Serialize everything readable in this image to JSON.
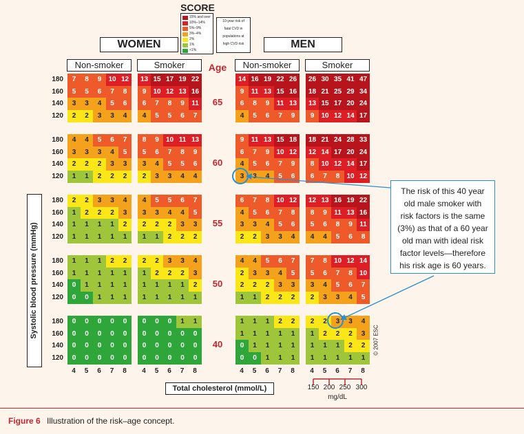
{
  "score": {
    "title": "SCORE",
    "legend": [
      "15% and over",
      "10%–14%",
      "5%–9%",
      "3%–4%",
      "2%",
      "1%",
      "<1%"
    ],
    "colors": [
      "#b8141b",
      "#dd1e24",
      "#ee5a2a",
      "#f4a21b",
      "#fbe718",
      "#9fc63b",
      "#2fa63a"
    ],
    "note_lines": [
      "10-year risk of",
      "fatal CVD in",
      "populations at",
      "high CVD risk"
    ]
  },
  "headings": {
    "women": "WOMEN",
    "men": "MEN",
    "age": "Age",
    "non_smoker": "Non-smoker",
    "smoker": "Smoker",
    "y_axis": "Systolic blood pressure (mmHg)",
    "x_axis": "Total cholesterol (mmol/L)"
  },
  "callout": {
    "lines": [
      "The risk of this 40 year",
      "old male smoker with",
      "risk factors is the same",
      "(3%) as that of a 60 year",
      "old man with ideal risk",
      "factor levels—therefore",
      "his risk age is 60 years."
    ]
  },
  "mgdl": {
    "ticks": [
      "150",
      "200",
      "250",
      "300"
    ],
    "unit": "mg/dL"
  },
  "copyright": "© 2007 ESC",
  "caption": {
    "label": "Figure 6",
    "text": "Illustration of the risk–age concept."
  },
  "chart_data": {
    "type": "heatmap",
    "ages": [
      65,
      60,
      55,
      50,
      40
    ],
    "sbp": [
      180,
      160,
      140,
      120
    ],
    "cholesterol": [
      4,
      5,
      6,
      7,
      8
    ],
    "panels": {
      "women_non_smoker": [
        [
          [
            7,
            8,
            9,
            10,
            12
          ],
          [
            5,
            5,
            6,
            7,
            8
          ],
          [
            3,
            3,
            4,
            5,
            6
          ],
          [
            2,
            2,
            3,
            3,
            4
          ]
        ],
        [
          [
            4,
            4,
            5,
            6,
            7
          ],
          [
            3,
            3,
            3,
            4,
            5
          ],
          [
            2,
            2,
            2,
            3,
            3
          ],
          [
            1,
            1,
            2,
            2,
            2
          ]
        ],
        [
          [
            2,
            2,
            3,
            3,
            4
          ],
          [
            1,
            2,
            2,
            2,
            3
          ],
          [
            1,
            1,
            1,
            1,
            2
          ],
          [
            1,
            1,
            1,
            1,
            1
          ]
        ],
        [
          [
            1,
            1,
            1,
            2,
            2
          ],
          [
            1,
            1,
            1,
            1,
            1
          ],
          [
            0,
            1,
            1,
            1,
            1
          ],
          [
            0,
            0,
            1,
            1,
            1
          ]
        ],
        [
          [
            0,
            0,
            0,
            0,
            0
          ],
          [
            0,
            0,
            0,
            0,
            0
          ],
          [
            0,
            0,
            0,
            0,
            0
          ],
          [
            0,
            0,
            0,
            0,
            0
          ]
        ]
      ],
      "women_smoker": [
        [
          [
            13,
            15,
            17,
            19,
            22
          ],
          [
            9,
            10,
            12,
            13,
            16
          ],
          [
            6,
            7,
            8,
            9,
            11
          ],
          [
            4,
            5,
            5,
            6,
            7
          ]
        ],
        [
          [
            8,
            9,
            10,
            11,
            13
          ],
          [
            5,
            6,
            7,
            8,
            9
          ],
          [
            3,
            4,
            5,
            5,
            6
          ],
          [
            2,
            3,
            3,
            4,
            4
          ]
        ],
        [
          [
            4,
            5,
            5,
            6,
            7
          ],
          [
            3,
            3,
            4,
            4,
            5
          ],
          [
            2,
            2,
            2,
            3,
            3
          ],
          [
            1,
            1,
            2,
            2,
            2
          ]
        ],
        [
          [
            2,
            2,
            3,
            3,
            4
          ],
          [
            1,
            2,
            2,
            2,
            3
          ],
          [
            1,
            1,
            1,
            1,
            2
          ],
          [
            1,
            1,
            1,
            1,
            1
          ]
        ],
        [
          [
            0,
            0,
            0,
            1,
            1
          ],
          [
            0,
            0,
            0,
            0,
            0
          ],
          [
            0,
            0,
            0,
            0,
            0
          ],
          [
            0,
            0,
            0,
            0,
            0
          ]
        ]
      ],
      "men_non_smoker": [
        [
          [
            14,
            16,
            19,
            22,
            26
          ],
          [
            9,
            11,
            13,
            15,
            16
          ],
          [
            6,
            8,
            9,
            11,
            13
          ],
          [
            4,
            5,
            6,
            7,
            9
          ]
        ],
        [
          [
            9,
            11,
            13,
            15,
            18
          ],
          [
            6,
            7,
            9,
            10,
            12
          ],
          [
            4,
            5,
            6,
            7,
            9
          ],
          [
            3,
            3,
            4,
            5,
            6
          ]
        ],
        [
          [
            6,
            7,
            8,
            10,
            12
          ],
          [
            4,
            5,
            6,
            7,
            8
          ],
          [
            3,
            3,
            4,
            5,
            6
          ],
          [
            2,
            2,
            3,
            3,
            4
          ]
        ],
        [
          [
            4,
            4,
            5,
            6,
            7
          ],
          [
            2,
            3,
            3,
            4,
            5
          ],
          [
            2,
            2,
            2,
            3,
            3
          ],
          [
            1,
            1,
            2,
            2,
            2
          ]
        ],
        [
          [
            1,
            1,
            1,
            2,
            2
          ],
          [
            1,
            1,
            1,
            1,
            1
          ],
          [
            0,
            1,
            1,
            1,
            1
          ],
          [
            0,
            0,
            1,
            1,
            1
          ]
        ]
      ],
      "men_smoker": [
        [
          [
            26,
            30,
            35,
            41,
            47
          ],
          [
            18,
            21,
            25,
            29,
            34
          ],
          [
            13,
            15,
            17,
            20,
            24
          ],
          [
            9,
            10,
            12,
            14,
            17
          ]
        ],
        [
          [
            18,
            21,
            24,
            28,
            33
          ],
          [
            12,
            14,
            17,
            20,
            24
          ],
          [
            8,
            10,
            12,
            14,
            17
          ],
          [
            6,
            7,
            8,
            10,
            12
          ]
        ],
        [
          [
            12,
            13,
            16,
            19,
            22
          ],
          [
            8,
            9,
            11,
            13,
            16
          ],
          [
            5,
            6,
            8,
            9,
            11
          ],
          [
            4,
            4,
            5,
            6,
            8
          ]
        ],
        [
          [
            7,
            8,
            10,
            12,
            14
          ],
          [
            5,
            6,
            7,
            8,
            10
          ],
          [
            3,
            4,
            5,
            6,
            7
          ],
          [
            2,
            3,
            3,
            4,
            5
          ]
        ],
        [
          [
            2,
            2,
            3,
            3,
            4
          ],
          [
            1,
            2,
            2,
            2,
            3
          ],
          [
            1,
            1,
            1,
            2,
            2
          ],
          [
            1,
            1,
            1,
            1,
            1
          ]
        ]
      ]
    },
    "highlighted_cells": [
      {
        "panel": "men_non_smoker",
        "age": 60,
        "sbp": 120,
        "cholesterol": 4,
        "value": 3
      },
      {
        "panel": "men_smoker",
        "age": 40,
        "sbp": 180,
        "cholesterol": 6,
        "value": 3
      }
    ]
  }
}
